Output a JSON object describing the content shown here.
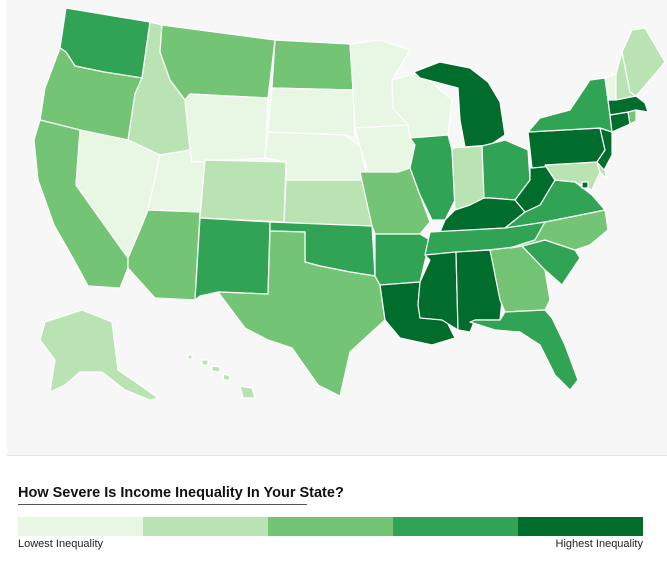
{
  "palette": {
    "c1": "#e8f6e4",
    "c2": "#b9e3b2",
    "c3": "#74c476",
    "c4": "#31a354",
    "c5": "#006d2c"
  },
  "legend": {
    "title": "How Severe Is Income Inequality In Your State?",
    "low_label": "Lowest Inequality",
    "high_label": "Highest Inequality",
    "classes": [
      "c1",
      "c2",
      "c3",
      "c4",
      "c5"
    ]
  },
  "states": {
    "WA": "c4",
    "OR": "c3",
    "CA": "c3",
    "ID": "c2",
    "NV": "c1",
    "UT": "c1",
    "AZ": "c3",
    "MT": "c3",
    "WY": "c1",
    "CO": "c2",
    "NM": "c4",
    "ND": "c3",
    "SD": "c1",
    "NE": "c1",
    "KS": "c2",
    "OK": "c4",
    "TX": "c3",
    "MN": "c1",
    "IA": "c1",
    "MO": "c3",
    "AR": "c4",
    "LA": "c5",
    "WI": "c1",
    "IL": "c4",
    "MI": "c5",
    "IN": "c2",
    "OH": "c4",
    "KY": "c5",
    "TN": "c4",
    "MS": "c5",
    "AL": "c5",
    "GA": "c3",
    "FL": "c4",
    "SC": "c4",
    "NC": "c3",
    "VA": "c4",
    "WV": "c5",
    "PA": "c5",
    "NY": "c4",
    "NJ": "c5",
    "DE": "c2",
    "MD": "c2",
    "DC": "c5",
    "CT": "c5",
    "RI": "c3",
    "MA": "c5",
    "VT": "c1",
    "NH": "c2",
    "ME": "c2",
    "AK": "c2",
    "HI": "c2"
  }
}
